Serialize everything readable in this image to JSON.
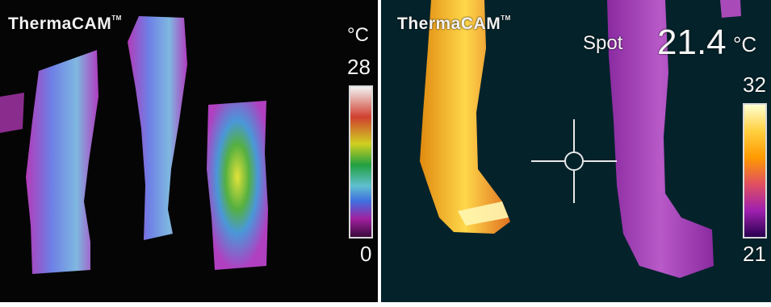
{
  "left_panel": {
    "brand": "ThermaCAM",
    "brand_mark": "TM",
    "unit": "°C",
    "scale_max": "28",
    "scale_min": "0"
  },
  "right_panel": {
    "brand": "ThermaCAM",
    "brand_mark": "TM",
    "spot_label": "Spot",
    "spot_value": "21.4",
    "unit": "°C",
    "scale_max": "32",
    "scale_min": "21"
  },
  "colors": {
    "accent_blue": "#1f5aa6",
    "left_palette": [
      "#3a0a3a",
      "#a020a0",
      "#3a6be0",
      "#66c8d0",
      "#229944",
      "#d8d820",
      "#cc3322",
      "#f0f0f0"
    ],
    "right_palette": [
      "#2a0050",
      "#a020b0",
      "#e05060",
      "#ff9a00",
      "#ffff80"
    ]
  },
  "icons": [
    "crosshair-icon"
  ]
}
